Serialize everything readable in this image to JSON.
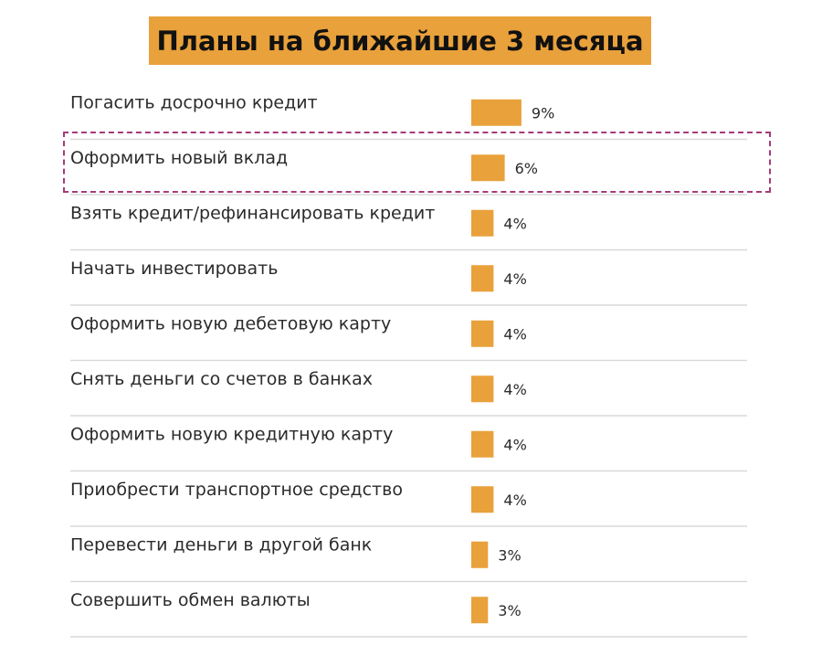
{
  "chart_data": {
    "type": "bar",
    "orientation": "horizontal",
    "title": "Планы на ближайшие 3 месяца",
    "xlabel": "",
    "ylabel": "",
    "categories": [
      "Погасить досрочно кредит",
      "Оформить новый вклад",
      "Взять кредит/рефинансировать кредит",
      "Начать инвестировать",
      "Оформить новую дебетовую карту",
      "Снять деньги со счетов в банках",
      "Оформить новую кредитную карту",
      "Приобрести транспортное средство",
      "Перевести деньги в другой банк",
      "Совершить обмен валюты"
    ],
    "values": [
      9,
      6,
      4,
      4,
      4,
      4,
      4,
      4,
      3,
      3
    ],
    "value_labels": [
      "9%",
      "6%",
      "4%",
      "4%",
      "4%",
      "4%",
      "4%",
      "4%",
      "3%",
      "3%"
    ],
    "unit": "%",
    "highlighted_category": "Оформить новый вклад",
    "grid": false,
    "row_separators": true
  },
  "colors": {
    "bar": "#e9a13b",
    "title_background": "#e9a13b",
    "highlight_border": "#a53a7a",
    "separator": "#d9d9d9"
  }
}
